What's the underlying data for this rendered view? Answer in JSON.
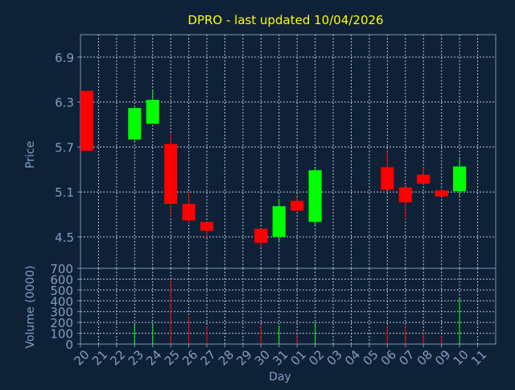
{
  "chart_data": {
    "type": "candlestick",
    "title": "DPRO - last updated 10/04/2026",
    "ylabel": "Price",
    "volume_label": "Volume (0000)",
    "xlabel": "Day",
    "grid": true,
    "colors": {
      "background": "#0f2137",
      "axis": "#7a95b5",
      "grid": "#b8c4d2",
      "title": "#ffff00",
      "label": "#7f9fc4",
      "up": "#00ff00",
      "down": "#ff0000"
    },
    "price_axis": {
      "ylim": [
        4.08,
        7.2
      ],
      "ticks": [
        4.5,
        5.1,
        5.7,
        6.3,
        6.9
      ],
      "tick_labels": [
        "4.5",
        "5.1",
        "5.7",
        "6.3",
        "6.9"
      ]
    },
    "volume_axis": {
      "ylim": [
        0,
        700
      ],
      "ticks": [
        0,
        100,
        200,
        300,
        400,
        500,
        600,
        700
      ],
      "tick_labels": [
        "0",
        "100",
        "200",
        "300",
        "400",
        "500",
        "600",
        "700"
      ]
    },
    "x_ticks": [
      "20",
      "21",
      "22",
      "23",
      "24",
      "25",
      "26",
      "27",
      "28",
      "29",
      "30",
      "31",
      "01",
      "02",
      "03",
      "04",
      "05",
      "06",
      "07",
      "08",
      "09",
      "10",
      "11"
    ],
    "candles": [
      {
        "i": 0,
        "open": 6.45,
        "close": 5.65,
        "high": 6.45,
        "low": 5.65,
        "volume": 0
      },
      {
        "i": 3,
        "open": 5.8,
        "close": 6.22,
        "high": 6.25,
        "low": 5.78,
        "volume": 180
      },
      {
        "i": 4,
        "open": 6.01,
        "close": 6.33,
        "high": 6.46,
        "low": 6.01,
        "volume": 190
      },
      {
        "i": 5,
        "open": 5.74,
        "close": 4.94,
        "high": 5.88,
        "low": 4.77,
        "volume": 600
      },
      {
        "i": 6,
        "open": 4.94,
        "close": 4.72,
        "high": 5.09,
        "low": 4.67,
        "volume": 250
      },
      {
        "i": 7,
        "open": 4.7,
        "close": 4.58,
        "high": 4.7,
        "low": 4.49,
        "volume": 160
      },
      {
        "i": 10,
        "open": 4.61,
        "close": 4.42,
        "high": 4.61,
        "low": 4.36,
        "volume": 170
      },
      {
        "i": 11,
        "open": 4.5,
        "close": 4.91,
        "high": 5.0,
        "low": 4.44,
        "volume": 170
      },
      {
        "i": 12,
        "open": 4.98,
        "close": 4.85,
        "high": 5.03,
        "low": 4.85,
        "volume": 90
      },
      {
        "i": 13,
        "open": 4.7,
        "close": 5.39,
        "high": 5.43,
        "low": 4.66,
        "volume": 200
      },
      {
        "i": 17,
        "open": 5.43,
        "close": 5.13,
        "high": 5.64,
        "low": 5.13,
        "volume": 160
      },
      {
        "i": 18,
        "open": 5.16,
        "close": 4.96,
        "high": 5.16,
        "low": 4.72,
        "volume": 160
      },
      {
        "i": 19,
        "open": 5.33,
        "close": 5.21,
        "high": 5.43,
        "low": 5.21,
        "volume": 100
      },
      {
        "i": 20,
        "open": 5.12,
        "close": 5.04,
        "high": 5.15,
        "low": 5.04,
        "volume": 80
      },
      {
        "i": 21,
        "open": 5.11,
        "close": 5.44,
        "high": 5.54,
        "low": 5.05,
        "volume": 420
      }
    ]
  }
}
